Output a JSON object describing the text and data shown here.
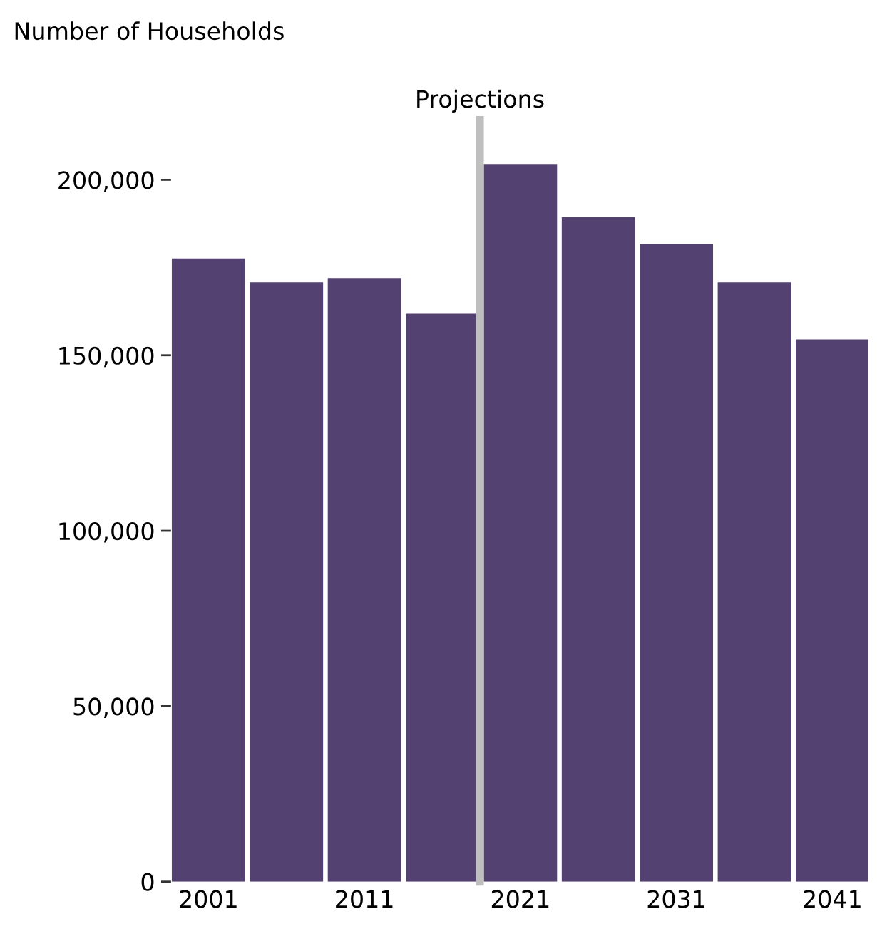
{
  "chart_data": {
    "type": "bar",
    "ylabel": "Number of Households",
    "x": [
      2001,
      2006,
      2011,
      2016,
      2021,
      2026,
      2031,
      2036,
      2041
    ],
    "values": [
      177600,
      170800,
      172000,
      161800,
      204500,
      189400,
      181700,
      170800,
      154500
    ],
    "color": "#534171",
    "xlim": [
      1998.6,
      2043.3
    ],
    "xticks": [
      2001,
      2011,
      2021,
      2031,
      2041
    ],
    "ylim": [
      0,
      217000
    ],
    "yticks": [
      {
        "value": 0,
        "label": "0"
      },
      {
        "value": 50000,
        "label": "50,000"
      },
      {
        "value": 100000,
        "label": "100,000"
      },
      {
        "value": 150000,
        "label": "150,000"
      },
      {
        "value": 200000,
        "label": "200,000"
      }
    ],
    "ref_lines": [
      {
        "axis": "x",
        "value": 2018.4,
        "label": "Projections",
        "color": "#bfbfbf"
      }
    ],
    "grid": false,
    "legend": false
  }
}
